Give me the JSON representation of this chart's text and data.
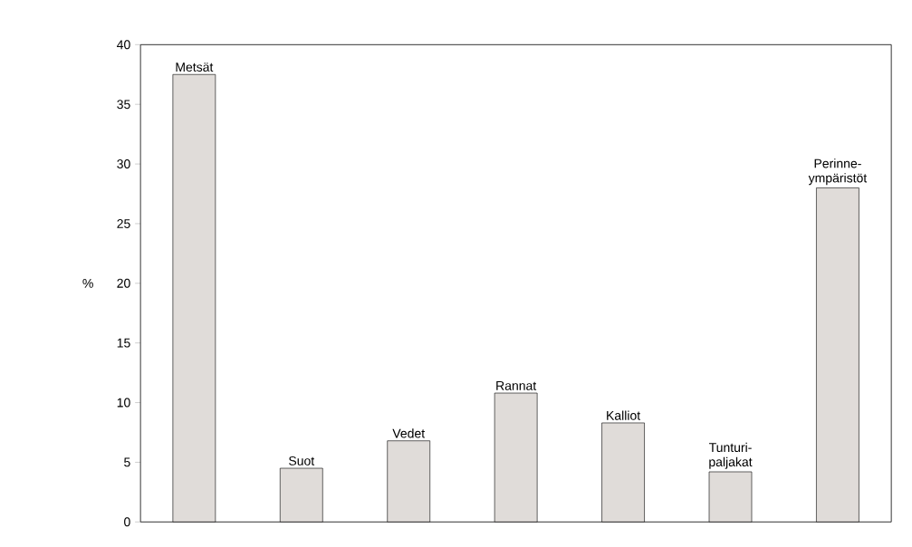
{
  "chart_data": {
    "type": "bar",
    "ylabel": "%",
    "categories": [
      "Metsät",
      "Suot",
      "Vedet",
      "Rannat",
      "Kalliot",
      "Tunturi-paljakat",
      "Perinne-ympäristöt"
    ],
    "values": [
      37.5,
      4.5,
      6.8,
      10.8,
      8.3,
      4.2,
      28.0
    ],
    "color": "#e0dcd9",
    "ylim": [
      0,
      40
    ],
    "yticks": [
      0,
      5,
      10,
      15,
      20,
      25,
      30,
      35,
      40
    ],
    "grid": false
  }
}
